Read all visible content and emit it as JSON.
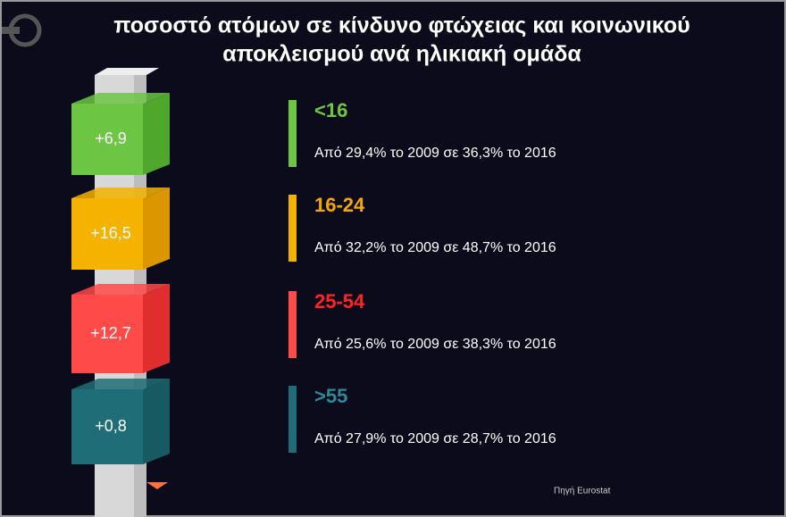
{
  "header": {
    "title_line1": "ποσοστό ατόμων σε κίνδυνο φτώχειας και κοινωνικού",
    "title_line2": "αποκλεισμού ανά ηλικιακή ομάδα"
  },
  "items": [
    {
      "badge": "+6,9",
      "label": "<16",
      "description": "Από 29,4% το 2009 σε 36,3% το 2016",
      "color": "#6cc644",
      "side_color": "#4fa82c",
      "label_color": "#6ec93e"
    },
    {
      "badge": "+16,5",
      "label": "16-24",
      "description": "Από 32,2% το 2009 σε 48,7% το 2016",
      "color": "#f5b300",
      "side_color": "#dc9600",
      "label_color": "#f5a800"
    },
    {
      "badge": "+12,7",
      "label": "25-54",
      "description": "Από 25,6% το 2009 σε 38,3% το 2016",
      "color": "#ff4a4a",
      "side_color": "#e02e2e",
      "label_color": "#ff2323"
    },
    {
      "badge": "+0,8",
      "label": ">55",
      "description": "Από 27,9% το 2009 σε 28,7% το 2016",
      "color": "#1f6e77",
      "side_color": "#175a62",
      "label_color": "#2b8a96"
    }
  ],
  "source": "Πηγή Eurostat"
}
